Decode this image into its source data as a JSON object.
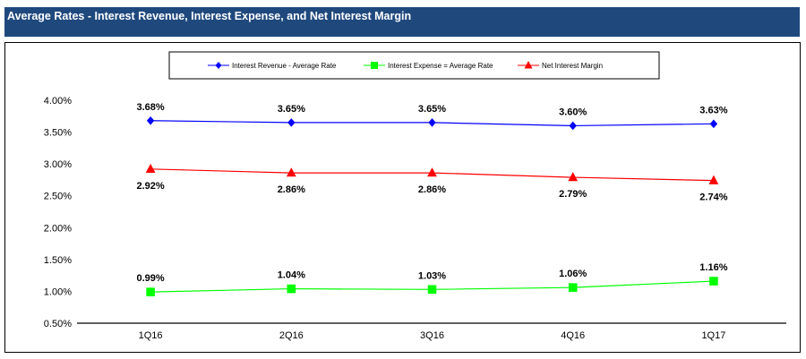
{
  "header": {
    "title": "Average Rates - Interest Revenue, Interest Expense, and Net Interest Margin"
  },
  "chart_data": {
    "type": "line",
    "title": "",
    "categories": [
      "1Q16",
      "2Q16",
      "3Q16",
      "4Q16",
      "1Q17"
    ],
    "ylim": [
      0.5,
      4.0
    ],
    "yticks": [
      "4.00%",
      "3.50%",
      "3.00%",
      "2.50%",
      "2.00%",
      "1.50%",
      "1.00%",
      "0.50%"
    ],
    "ytick_values": [
      4.0,
      3.5,
      3.0,
      2.5,
      2.0,
      1.5,
      1.0,
      0.5
    ],
    "grid": false,
    "legend_position": "top",
    "series": [
      {
        "name": "Interest Revenue - Average Rate",
        "color": "#0000FF",
        "marker": "diamond",
        "values": [
          3.68,
          3.65,
          3.65,
          3.6,
          3.63
        ],
        "labels": [
          "3.68%",
          "3.65%",
          "3.65%",
          "3.60%",
          "3.63%"
        ],
        "label_pos": "above"
      },
      {
        "name": "Interest Expense = Average Rate",
        "color": "#00FF00",
        "marker": "square",
        "values": [
          0.99,
          1.04,
          1.03,
          1.06,
          1.16
        ],
        "labels": [
          "0.99%",
          "1.04%",
          "1.03%",
          "1.06%",
          "1.16%"
        ],
        "label_pos": "above"
      },
      {
        "name": "Net Interest Margin",
        "color": "#FF0000",
        "marker": "triangle",
        "values": [
          2.92,
          2.86,
          2.86,
          2.79,
          2.74
        ],
        "labels": [
          "2.92%",
          "2.86%",
          "2.86%",
          "2.79%",
          "2.74%"
        ],
        "label_pos": "below"
      }
    ]
  }
}
